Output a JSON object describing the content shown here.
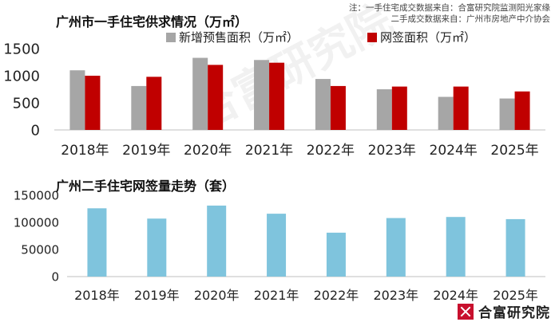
{
  "sources": {
    "line1": "注：一手住宅成交数据来自：合富研究院监测阳光家缘",
    "line2": "二手成交数据来自：广州市房地产中介协会"
  },
  "watermark": "合富研究院",
  "logo": {
    "text": "合富研究院"
  },
  "colors": {
    "gray": "#a6a6a6",
    "red": "#c00000",
    "blue": "#7fc4dd",
    "axis": "#bfbfbf"
  },
  "chart_data": [
    {
      "type": "bar",
      "title": "广州市一手住宅供求情况（万㎡）",
      "categories": [
        "2018年",
        "2019年",
        "2020年",
        "2021年",
        "2022年",
        "2023年",
        "2024年",
        "2025年"
      ],
      "series": [
        {
          "name": "新增预售面积（万㎡）",
          "values": [
            1100,
            810,
            1330,
            1290,
            940,
            750,
            610,
            580
          ]
        },
        {
          "name": "网签面积（万㎡）",
          "values": [
            1000,
            980,
            1200,
            1240,
            810,
            800,
            800,
            710
          ]
        }
      ],
      "yticks": [
        "0",
        "500",
        "1000",
        "1500"
      ],
      "ylim": [
        0,
        1500
      ],
      "legend": "top"
    },
    {
      "type": "bar",
      "title": "广州二手住宅网签量走势（套）",
      "categories": [
        "2018年",
        "2019年",
        "2020年",
        "2021年",
        "2022年",
        "2023年",
        "2024年",
        "2025年"
      ],
      "series": [
        {
          "name": "二手住宅网签量",
          "values": [
            126000,
            107000,
            131000,
            116000,
            81000,
            108000,
            110000,
            106000
          ]
        }
      ],
      "yticks": [
        "0",
        "50000",
        "100000",
        "150000"
      ],
      "ylim": [
        0,
        150000
      ]
    }
  ]
}
